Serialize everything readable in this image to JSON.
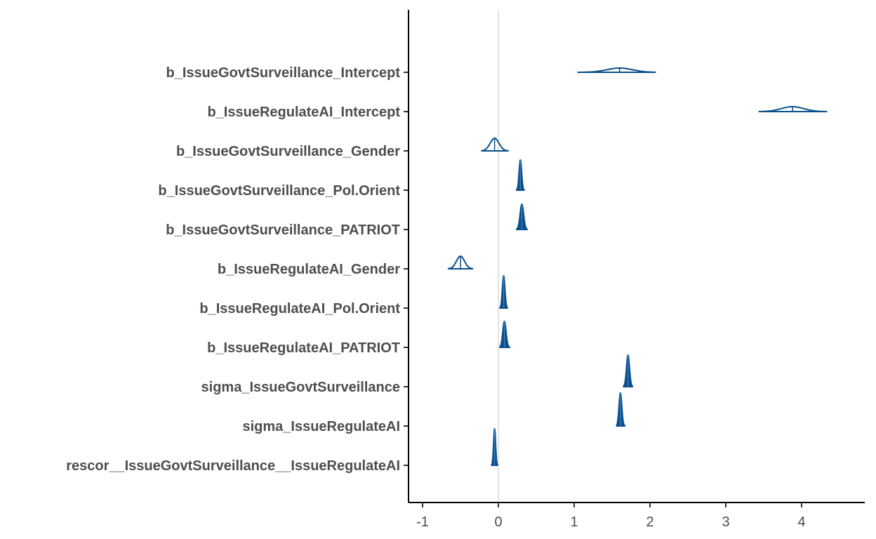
{
  "chart_data": {
    "type": "area",
    "title": "",
    "xlabel": "",
    "ylabel": "",
    "xlim": [
      -1.2,
      4.85
    ],
    "x_ticks": [
      -1,
      0,
      1,
      2,
      3,
      4
    ],
    "x_tick_labels": [
      "-1",
      "0",
      "1",
      "2",
      "3",
      "4"
    ],
    "vline_at": 0,
    "grid": false,
    "legend": "none",
    "colors": {
      "fill": "#0b4f8a",
      "line": "#0b4f8a",
      "vline": "#d9d9d9",
      "axis": "#000000"
    },
    "parameters": [
      {
        "label": "b_IssueGovtSurveillance_Intercept",
        "median": 1.6,
        "low": 1.05,
        "high": 2.07,
        "peak_height": 6
      },
      {
        "label": "b_IssueRegulateAI_Intercept",
        "median": 3.88,
        "low": 3.44,
        "high": 4.33,
        "peak_height": 7
      },
      {
        "label": "b_IssueGovtSurveillance_Gender",
        "median": -0.05,
        "low": -0.22,
        "high": 0.13,
        "peak_height": 18
      },
      {
        "label": "b_IssueGovtSurveillance_Pol.Orient",
        "median": 0.29,
        "low": 0.24,
        "high": 0.34,
        "peak_height": 43
      },
      {
        "label": "b_IssueGovtSurveillance_PATRIOT",
        "median": 0.31,
        "low": 0.24,
        "high": 0.38,
        "peak_height": 36
      },
      {
        "label": "b_IssueRegulateAI_Gender",
        "median": -0.5,
        "low": -0.66,
        "high": -0.34,
        "peak_height": 18
      },
      {
        "label": "b_IssueRegulateAI_Pol.Orient",
        "median": 0.07,
        "low": 0.02,
        "high": 0.12,
        "peak_height": 46
      },
      {
        "label": "b_IssueRegulateAI_PATRIOT",
        "median": 0.08,
        "low": 0.02,
        "high": 0.15,
        "peak_height": 37
      },
      {
        "label": "sigma_IssueGovtSurveillance",
        "median": 1.71,
        "low": 1.65,
        "high": 1.77,
        "peak_height": 45
      },
      {
        "label": "sigma_IssueRegulateAI",
        "median": 1.61,
        "low": 1.56,
        "high": 1.67,
        "peak_height": 47
      },
      {
        "label": "rescor__IssueGovtSurveillance__IssueRegulateAI",
        "median": -0.05,
        "low": -0.09,
        "high": -0.01,
        "peak_height": 52
      }
    ]
  }
}
